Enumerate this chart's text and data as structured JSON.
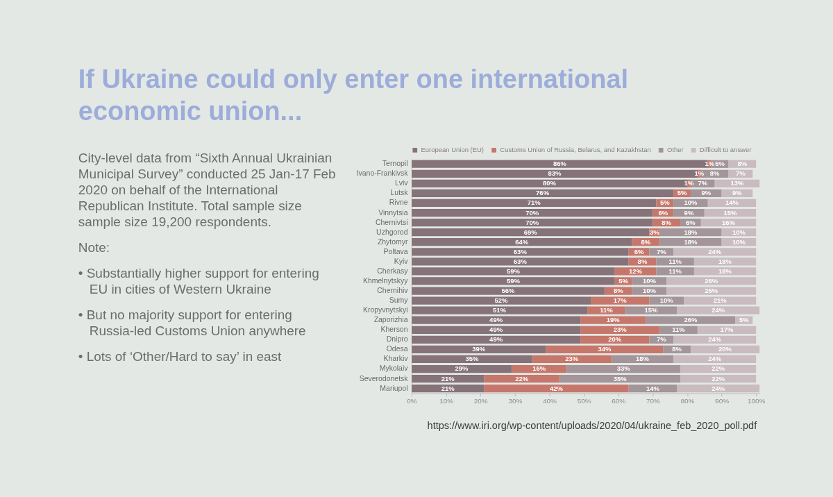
{
  "chart_data": {
    "type": "bar",
    "orientation": "horizontal",
    "stacked": true,
    "title": "If Ukraine could only enter one international economic union...",
    "annotations": [
      "City-level data from “Sixth Annual Ukrainian Municipal Survey” conducted 25 Jan-17 Feb 2020 on behalf of the International Republican Institute. Total sample size sample size 19,200 respondents.",
      "Note:",
      "• Substantially higher support for entering EU in cities of Western Ukraine",
      "• But no majority support for entering Russia-led Customs Union anywhere",
      "• Lots of ‘Other/Hard to say’ in east",
      "https://www.iri.org/wp-content/uploads/2020/04/ukraine_feb_2020_poll.pdf"
    ],
    "categories": [
      "Ternopil",
      "Ivano-Frankivsk",
      "Lviv",
      "Lutsk",
      "Rivne",
      "Vinnytsia",
      "Chernivtsi",
      "Uzhgorod",
      "Zhytomyr",
      "Poltava",
      "Kyiv",
      "Cherkasy",
      "Khmelnytskyy",
      "Chernihiv",
      "Sumy",
      "Kropyvnytskyi",
      "Zaporizhia",
      "Kherson",
      "Dnipro",
      "Odesa",
      "Kharkiv",
      "Mykolaiv",
      "Severodonetsk",
      "Mariupol"
    ],
    "series": [
      {
        "name": "European Union (EU)",
        "color": "#86737a",
        "values": [
          86,
          83,
          80,
          76,
          71,
          70,
          70,
          69,
          64,
          63,
          63,
          59,
          59,
          56,
          52,
          51,
          49,
          49,
          49,
          39,
          35,
          29,
          21,
          21
        ],
        "value_labels": [
          "86%",
          "83%",
          "80%",
          "76%",
          "71%",
          "70%",
          "70%",
          "69%",
          "64%",
          "63%",
          "63%",
          "59%",
          "59%",
          "56%",
          "52%",
          "51%",
          "49%",
          "49%",
          "49%",
          "39%",
          "35%",
          "29%",
          "21%",
          "21%"
        ]
      },
      {
        "name": "Customs Union of Russia, Belarus, and Kazakhstan",
        "color": "#c6776b",
        "values": [
          1,
          1,
          1,
          5,
          5,
          6,
          8,
          3,
          8,
          6,
          8,
          12,
          5,
          8,
          17,
          11,
          19,
          23,
          20,
          34,
          23,
          16,
          22,
          42
        ],
        "value_labels": [
          "1%",
          "1%",
          "1%",
          "5%",
          "5%",
          "6%",
          "8%",
          "3%",
          "8%",
          "6%",
          "8%",
          "12%",
          "5%",
          "8%",
          "17%",
          "11%",
          "19%",
          "23%",
          "20%",
          "34%",
          "23%",
          "16%",
          "22%",
          "42%"
        ]
      },
      {
        "name": "Other",
        "color": "#a3959a",
        "values": [
          5,
          8,
          7,
          9,
          10,
          9,
          6,
          18,
          18,
          7,
          11,
          11,
          10,
          10,
          10,
          15,
          26,
          11,
          7,
          8,
          18,
          33,
          35,
          14
        ],
        "value_labels": [
          "5%",
          "8%",
          "7%",
          "9%",
          "10%",
          "9%",
          "6%",
          "18%",
          "18%",
          "7%",
          "11%",
          "11%",
          "10%",
          "10%",
          "10%",
          "15%",
          "26%",
          "11%",
          "7%",
          "8%",
          "18%",
          "33%",
          "35%",
          "14%"
        ]
      },
      {
        "name": "Difficult to answer",
        "color": "#c9bbbf",
        "values": [
          8,
          7,
          13,
          9,
          14,
          15,
          16,
          10,
          10,
          24,
          18,
          18,
          26,
          26,
          21,
          24,
          5,
          17,
          24,
          20,
          24,
          22,
          22,
          24
        ],
        "value_labels": [
          "8%",
          "7%",
          "13%",
          "9%",
          "14%",
          "15%",
          "16%",
          "10%",
          "10%",
          "24%",
          "18%",
          "18%",
          "26%",
          "26%",
          "21%",
          "24%",
          "5%",
          "17%",
          "24%",
          "20%",
          "24%",
          "22%",
          "22%",
          "24%"
        ]
      }
    ],
    "xlim": [
      0,
      101
    ],
    "xticks": [
      {
        "value": 0,
        "label": "0%"
      },
      {
        "value": 10,
        "label": "10%"
      },
      {
        "value": 20,
        "label": "20%"
      },
      {
        "value": 30,
        "label": "30%"
      },
      {
        "value": 40,
        "label": "40%"
      },
      {
        "value": 50,
        "label": "50%"
      },
      {
        "value": 60,
        "label": "60%"
      },
      {
        "value": 70,
        "label": "70%"
      },
      {
        "value": 80,
        "label": "80%"
      },
      {
        "value": 90,
        "label": "90%"
      },
      {
        "value": 100,
        "label": "100%"
      }
    ],
    "legend": "top"
  }
}
